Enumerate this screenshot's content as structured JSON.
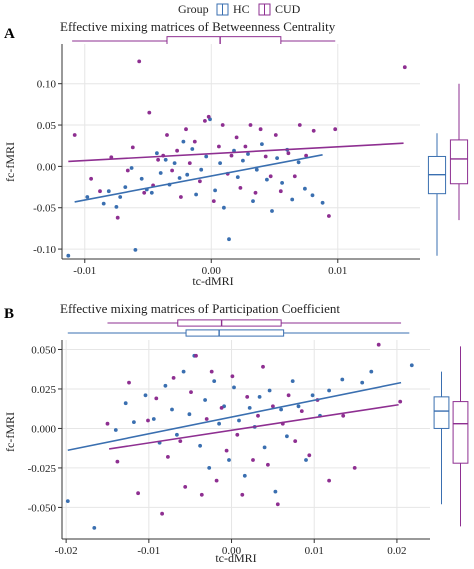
{
  "legend": {
    "title": "Group",
    "items": [
      {
        "label": "HC",
        "color": "#3a6fb0"
      },
      {
        "label": "CUD",
        "color": "#8e2f91"
      }
    ]
  },
  "chart_data": [
    {
      "panel": "A",
      "type": "scatter",
      "title": "Effective mixing matrices of Betweenness Centrality",
      "xlabel": "tc-dMRI",
      "ylabel": "fc-fMRI",
      "xlim": [
        -0.0118,
        0.0165
      ],
      "ylim": [
        -0.112,
        0.148
      ],
      "xticks": [
        -0.01,
        0.0,
        0.01
      ],
      "xtick_labels": [
        "-0.01",
        "0.00",
        "0.01"
      ],
      "yticks": [
        -0.1,
        -0.05,
        0.0,
        0.05,
        0.1
      ],
      "ytick_labels": [
        "-0.10",
        "-0.05",
        "0.00",
        "0.05",
        "0.10"
      ],
      "grid": true,
      "series": [
        {
          "name": "HC",
          "color": "#3a6fb0",
          "points": [
            [
              -0.0113,
              -0.108
            ],
            [
              -0.0098,
              -0.037
            ],
            [
              -0.0085,
              -0.045
            ],
            [
              -0.0081,
              -0.03
            ],
            [
              -0.0075,
              -0.049
            ],
            [
              -0.0072,
              -0.037
            ],
            [
              -0.0068,
              -0.025
            ],
            [
              -0.0063,
              -0.002
            ],
            [
              -0.006,
              -0.101
            ],
            [
              -0.0055,
              -0.015
            ],
            [
              -0.0051,
              -0.028
            ],
            [
              -0.0047,
              -0.032
            ],
            [
              -0.0043,
              0.016
            ],
            [
              -0.004,
              -0.008
            ],
            [
              -0.0036,
              0.008
            ],
            [
              -0.0033,
              -0.022
            ],
            [
              -0.0029,
              0.004
            ],
            [
              -0.0025,
              -0.014
            ],
            [
              -0.0022,
              0.03
            ],
            [
              -0.0019,
              -0.01
            ],
            [
              -0.0015,
              0.021
            ],
            [
              -0.0012,
              -0.034
            ],
            [
              -0.0008,
              -0.004
            ],
            [
              -0.0004,
              0.012
            ],
            [
              -0.0001,
              0.057
            ],
            [
              0.0003,
              -0.029
            ],
            [
              0.0007,
              0.004
            ],
            [
              0.001,
              -0.05
            ],
            [
              0.0014,
              -0.088
            ],
            [
              0.0018,
              0.019
            ],
            [
              0.0021,
              -0.013
            ],
            [
              0.0025,
              0.007
            ],
            [
              0.0029,
              0.015
            ],
            [
              0.0033,
              -0.042
            ],
            [
              0.0036,
              -0.004
            ],
            [
              0.004,
              0.027
            ],
            [
              0.0044,
              -0.016
            ],
            [
              0.0048,
              -0.054
            ],
            [
              0.0052,
              0.01
            ],
            [
              0.0056,
              -0.02
            ],
            [
              0.006,
              0.02
            ],
            [
              0.0064,
              -0.04
            ],
            [
              0.0069,
              0.005
            ],
            [
              0.0074,
              -0.027
            ],
            [
              0.008,
              -0.035
            ],
            [
              0.0088,
              -0.044
            ]
          ],
          "trend": {
            "x": [
              -0.0108,
              0.0088
            ],
            "y": [
              -0.043,
              0.014
            ]
          },
          "box": {
            "whisker_low": -0.108,
            "q1": -0.033,
            "median": -0.01,
            "q3": 0.012,
            "whisker_high": 0.04
          }
        },
        {
          "name": "CUD",
          "color": "#8e2f91",
          "points": [
            [
              -0.0108,
              0.038
            ],
            [
              -0.0095,
              -0.015
            ],
            [
              -0.0088,
              -0.03
            ],
            [
              -0.0079,
              0.011
            ],
            [
              -0.0074,
              -0.062
            ],
            [
              -0.0066,
              -0.005
            ],
            [
              -0.0062,
              0.023
            ],
            [
              -0.0057,
              0.127
            ],
            [
              -0.0053,
              -0.032
            ],
            [
              -0.0049,
              0.065
            ],
            [
              -0.0046,
              -0.023
            ],
            [
              -0.0042,
              0.008
            ],
            [
              -0.0038,
              0.013
            ],
            [
              -0.0035,
              0.038
            ],
            [
              -0.0031,
              -0.005
            ],
            [
              -0.0027,
              0.019
            ],
            [
              -0.0024,
              -0.037
            ],
            [
              -0.002,
              0.045
            ],
            [
              -0.0017,
              0.004
            ],
            [
              -0.0013,
              0.03
            ],
            [
              -0.0009,
              -0.018
            ],
            [
              -0.0005,
              0.055
            ],
            [
              -0.0002,
              0.06
            ],
            [
              0.0002,
              -0.042
            ],
            [
              0.0006,
              0.024
            ],
            [
              0.0009,
              0.05
            ],
            [
              0.0013,
              -0.009
            ],
            [
              0.0016,
              0.013
            ],
            [
              0.002,
              0.035
            ],
            [
              0.0023,
              -0.026
            ],
            [
              0.0027,
              0.024
            ],
            [
              0.0031,
              0.05
            ],
            [
              0.0035,
              -0.032
            ],
            [
              0.0039,
              0.045
            ],
            [
              0.0043,
              0.012
            ],
            [
              0.0047,
              -0.012
            ],
            [
              0.0051,
              0.038
            ],
            [
              0.0055,
              -0.03
            ],
            [
              0.0061,
              0.016
            ],
            [
              0.0066,
              -0.012
            ],
            [
              0.007,
              0.05
            ],
            [
              0.0075,
              0.013
            ],
            [
              0.0081,
              0.043
            ],
            [
              0.0093,
              -0.06
            ],
            [
              0.0098,
              0.045
            ],
            [
              0.0153,
              0.12
            ]
          ],
          "trend": {
            "x": [
              -0.0113,
              0.0152
            ],
            "y": [
              0.006,
              0.028
            ]
          },
          "box": {
            "whisker_low": -0.065,
            "q1": -0.021,
            "median": 0.009,
            "q3": 0.032,
            "whisker_high": 0.1
          }
        }
      ],
      "top_box": [
        {
          "name": "HC",
          "whisker_low": -0.0112,
          "q1": -0.0035,
          "median": 0.0008,
          "q3": 0.0054,
          "whisker_high": 0.0092
        },
        {
          "name": "CUD",
          "whisker_low": -0.011,
          "q1": -0.0035,
          "median": 0.0007,
          "q3": 0.0055,
          "whisker_high": 0.0098
        }
      ]
    },
    {
      "panel": "B",
      "type": "scatter",
      "title": "Effective mixing matrices of Participation Coefficient",
      "xlabel": "tc-dMRI",
      "ylabel": "fc-fMRI",
      "xlim": [
        -0.0205,
        0.024
      ],
      "ylim": [
        -0.07,
        0.056
      ],
      "xticks": [
        -0.02,
        -0.01,
        0.0,
        0.01,
        0.02
      ],
      "xtick_labels": [
        "-0.02",
        "-0.01",
        "0.00",
        "0.01",
        "0.02"
      ],
      "yticks": [
        -0.05,
        -0.025,
        0.0,
        0.025,
        0.05
      ],
      "ytick_labels": [
        "-0.050",
        "-0.025",
        "0.000",
        "0.025",
        "0.050"
      ],
      "grid": true,
      "series": [
        {
          "name": "HC",
          "color": "#3a6fb0",
          "points": [
            [
              -0.0198,
              -0.046
            ],
            [
              -0.0166,
              -0.063
            ],
            [
              -0.014,
              -0.001
            ],
            [
              -0.0128,
              0.016
            ],
            [
              -0.0118,
              0.004
            ],
            [
              -0.0104,
              0.021
            ],
            [
              -0.0094,
              0.006
            ],
            [
              -0.0087,
              -0.009
            ],
            [
              -0.008,
              0.027
            ],
            [
              -0.0072,
              0.012
            ],
            [
              -0.0066,
              -0.004
            ],
            [
              -0.0058,
              0.036
            ],
            [
              -0.0051,
              0.009
            ],
            [
              -0.0045,
              0.046
            ],
            [
              -0.0038,
              -0.011
            ],
            [
              -0.0032,
              0.018
            ],
            [
              -0.0027,
              -0.025
            ],
            [
              -0.0021,
              0.03
            ],
            [
              -0.0015,
              0.003
            ],
            [
              -0.0009,
              0.014
            ],
            [
              -0.0003,
              -0.02
            ],
            [
              0.0003,
              0.026
            ],
            [
              0.0009,
              0.005
            ],
            [
              0.0016,
              -0.03
            ],
            [
              0.0022,
              0.013
            ],
            [
              0.0028,
              0.001
            ],
            [
              0.0034,
              0.02
            ],
            [
              0.004,
              -0.012
            ],
            [
              0.0046,
              0.024
            ],
            [
              0.0053,
              -0.04
            ],
            [
              0.006,
              0.012
            ],
            [
              0.0067,
              -0.005
            ],
            [
              0.0074,
              0.03
            ],
            [
              0.0081,
              0.014
            ],
            [
              0.009,
              -0.02
            ],
            [
              0.0098,
              0.021
            ],
            [
              0.0107,
              0.008
            ],
            [
              0.0118,
              0.024
            ],
            [
              0.0134,
              0.031
            ],
            [
              0.0158,
              0.029
            ],
            [
              0.0169,
              0.036
            ],
            [
              0.0218,
              0.04
            ]
          ],
          "trend": {
            "x": [
              -0.0198,
              0.0205
            ],
            "y": [
              -0.0138,
              0.029
            ]
          },
          "box": {
            "whisker_low": -0.048,
            "q1": 0.0,
            "median": 0.011,
            "q3": 0.02,
            "whisker_high": 0.036
          }
        },
        {
          "name": "CUD",
          "color": "#8e2f91",
          "points": [
            [
              -0.015,
              0.003
            ],
            [
              -0.0138,
              -0.021
            ],
            [
              -0.0124,
              0.029
            ],
            [
              -0.0113,
              -0.041
            ],
            [
              -0.0101,
              0.005
            ],
            [
              -0.0091,
              0.019
            ],
            [
              -0.0084,
              -0.054
            ],
            [
              -0.0077,
              -0.018
            ],
            [
              -0.007,
              0.032
            ],
            [
              -0.0062,
              -0.008
            ],
            [
              -0.0056,
              -0.037
            ],
            [
              -0.0049,
              0.023
            ],
            [
              -0.0043,
              0.046
            ],
            [
              -0.0036,
              -0.042
            ],
            [
              -0.003,
              0.006
            ],
            [
              -0.0024,
              0.036
            ],
            [
              -0.0018,
              -0.033
            ],
            [
              -0.0012,
              0.013
            ],
            [
              -0.0006,
              -0.014
            ],
            [
              0.0001,
              0.033
            ],
            [
              0.0007,
              -0.004
            ],
            [
              0.0013,
              -0.042
            ],
            [
              0.0019,
              0.02
            ],
            [
              0.0026,
              -0.02
            ],
            [
              0.0032,
              0.008
            ],
            [
              0.0038,
              0.039
            ],
            [
              0.0044,
              -0.023
            ],
            [
              0.005,
              0.014
            ],
            [
              0.0056,
              -0.048
            ],
            [
              0.0062,
              0.003
            ],
            [
              0.0069,
              0.021
            ],
            [
              0.0077,
              -0.008
            ],
            [
              0.0085,
              0.011
            ],
            [
              0.0094,
              -0.017
            ],
            [
              0.0104,
              0.018
            ],
            [
              0.0118,
              -0.033
            ],
            [
              0.0135,
              0.008
            ],
            [
              0.0149,
              -0.025
            ],
            [
              0.0178,
              0.053
            ],
            [
              0.0204,
              0.017
            ]
          ],
          "trend": {
            "x": [
              -0.0148,
              0.0202
            ],
            "y": [
              -0.013,
              0.015
            ]
          },
          "box": {
            "whisker_low": -0.062,
            "q1": -0.022,
            "median": 0.003,
            "q3": 0.017,
            "whisker_high": 0.052
          }
        }
      ],
      "top_box": [
        {
          "name": "HC",
          "whisker_low": -0.0198,
          "q1": -0.0055,
          "median": -0.0015,
          "q3": 0.0063,
          "whisker_high": 0.0215
        },
        {
          "name": "CUD",
          "whisker_low": -0.015,
          "q1": -0.0065,
          "median": -0.0012,
          "q3": 0.006,
          "whisker_high": 0.0205
        }
      ]
    }
  ]
}
